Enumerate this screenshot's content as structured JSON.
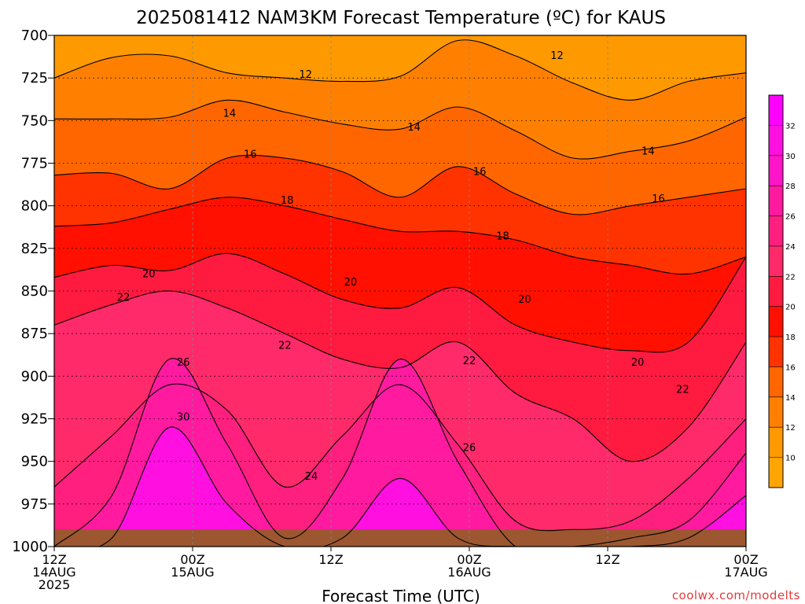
{
  "chart_data": {
    "type": "heatmap",
    "title": "2025081412 NAM3KM Forecast Temperature (ºC) for KAUS",
    "xlabel": "Forecast Time (UTC)",
    "ylabel": "",
    "credit": "coolwx.com/modelts",
    "y_scale": "pressure (hPa), inverted",
    "ylim": [
      1000,
      700
    ],
    "xlim": [
      0,
      60
    ],
    "y_ticks": [
      700,
      725,
      750,
      775,
      800,
      825,
      850,
      875,
      900,
      925,
      950,
      975,
      1000
    ],
    "x_ticks": [
      {
        "hour": 0,
        "lines": [
          "12Z",
          "14AUG",
          "2025"
        ]
      },
      {
        "hour": 12,
        "lines": [
          "00Z",
          "15AUG"
        ]
      },
      {
        "hour": 24,
        "lines": [
          "12Z"
        ]
      },
      {
        "hour": 36,
        "lines": [
          "00Z",
          "16AUG"
        ]
      },
      {
        "hour": 48,
        "lines": [
          "12Z"
        ]
      },
      {
        "hour": 60,
        "lines": [
          "00Z",
          "17AUG"
        ]
      }
    ],
    "colorbar": {
      "ticks": [
        10,
        12,
        14,
        16,
        18,
        20,
        22,
        24,
        26,
        28,
        30,
        32
      ],
      "bands": [
        {
          "min": 8,
          "max": 10,
          "color": "#ffa500"
        },
        {
          "min": 10,
          "max": 12,
          "color": "#ff9900"
        },
        {
          "min": 12,
          "max": 14,
          "color": "#ff8000"
        },
        {
          "min": 14,
          "max": 16,
          "color": "#ff6600"
        },
        {
          "min": 16,
          "max": 18,
          "color": "#ff3300"
        },
        {
          "min": 18,
          "max": 20,
          "color": "#ff1000"
        },
        {
          "min": 20,
          "max": 22,
          "color": "#ff1a40"
        },
        {
          "min": 22,
          "max": 24,
          "color": "#ff2a6a"
        },
        {
          "min": 24,
          "max": 26,
          "color": "#ff1f7f"
        },
        {
          "min": 26,
          "max": 28,
          "color": "#ff1aa0"
        },
        {
          "min": 28,
          "max": 30,
          "color": "#ff14c8"
        },
        {
          "min": 30,
          "max": 32,
          "color": "#ff0fe0"
        },
        {
          "min": 32,
          "max": 34,
          "color": "#ff00ff"
        }
      ]
    },
    "ground_color": "#9c5630",
    "series": [
      {
        "isotherm": 12,
        "pressure": [
          725,
          713,
          712,
          722,
          725,
          727,
          724,
          703,
          712,
          728,
          738,
          727,
          722
        ]
      },
      {
        "isotherm": 14,
        "pressure": [
          749,
          749,
          748,
          738,
          745,
          752,
          755,
          742,
          756,
          772,
          768,
          762,
          748
        ]
      },
      {
        "isotherm": 16,
        "pressure": [
          782,
          781,
          790,
          772,
          772,
          780,
          795,
          777,
          793,
          805,
          800,
          795,
          790
        ]
      },
      {
        "isotherm": 18,
        "pressure": [
          812,
          810,
          802,
          795,
          800,
          808,
          815,
          815,
          820,
          830,
          835,
          840,
          830
        ]
      },
      {
        "isotherm": 20,
        "pressure": [
          842,
          835,
          838,
          828,
          840,
          855,
          860,
          848,
          870,
          880,
          885,
          880,
          830
        ]
      },
      {
        "isotherm": 22,
        "pressure": [
          870,
          858,
          850,
          860,
          875,
          890,
          895,
          880,
          910,
          925,
          950,
          930,
          880
        ]
      },
      {
        "isotherm": 24,
        "pressure": [
          965,
          935,
          905,
          920,
          965,
          935,
          905,
          940,
          985,
          990,
          985,
          960,
          925
        ]
      },
      {
        "isotherm": 26,
        "pressure": [
          1000,
          970,
          890,
          940,
          995,
          960,
          890,
          950,
          1000,
          1000,
          995,
          985,
          945
        ]
      },
      {
        "isotherm": 30,
        "pressure": [
          1000,
          995,
          930,
          975,
          1000,
          995,
          960,
          995,
          1000,
          1000,
          1000,
          995,
          970
        ]
      }
    ],
    "hours": [
      0,
      5,
      10,
      15,
      20,
      25,
      30,
      35,
      40,
      45,
      50,
      55,
      60
    ],
    "contour_labels": [
      {
        "text": "12",
        "hour": 43.6,
        "p": 712
      },
      {
        "text": "12",
        "hour": 21.8,
        "p": 723
      },
      {
        "text": "14",
        "hour": 15.2,
        "p": 746
      },
      {
        "text": "14",
        "hour": 31.2,
        "p": 754
      },
      {
        "text": "14",
        "hour": 51.5,
        "p": 768
      },
      {
        "text": "16",
        "hour": 17.0,
        "p": 770
      },
      {
        "text": "16",
        "hour": 36.9,
        "p": 780
      },
      {
        "text": "16",
        "hour": 52.4,
        "p": 796
      },
      {
        "text": "18",
        "hour": 20.2,
        "p": 797
      },
      {
        "text": "18",
        "hour": 38.9,
        "p": 818
      },
      {
        "text": "20",
        "hour": 8.2,
        "p": 840
      },
      {
        "text": "20",
        "hour": 25.7,
        "p": 845
      },
      {
        "text": "20",
        "hour": 40.8,
        "p": 855
      },
      {
        "text": "20",
        "hour": 50.6,
        "p": 892
      },
      {
        "text": "22",
        "hour": 6.0,
        "p": 854
      },
      {
        "text": "22",
        "hour": 20.0,
        "p": 882
      },
      {
        "text": "22",
        "hour": 36.0,
        "p": 891
      },
      {
        "text": "22",
        "hour": 54.5,
        "p": 908
      },
      {
        "text": "24",
        "hour": 22.3,
        "p": 959
      },
      {
        "text": "26",
        "hour": 11.2,
        "p": 892
      },
      {
        "text": "26",
        "hour": 36.0,
        "p": 942
      },
      {
        "text": "30",
        "hour": 11.2,
        "p": 924
      }
    ]
  }
}
